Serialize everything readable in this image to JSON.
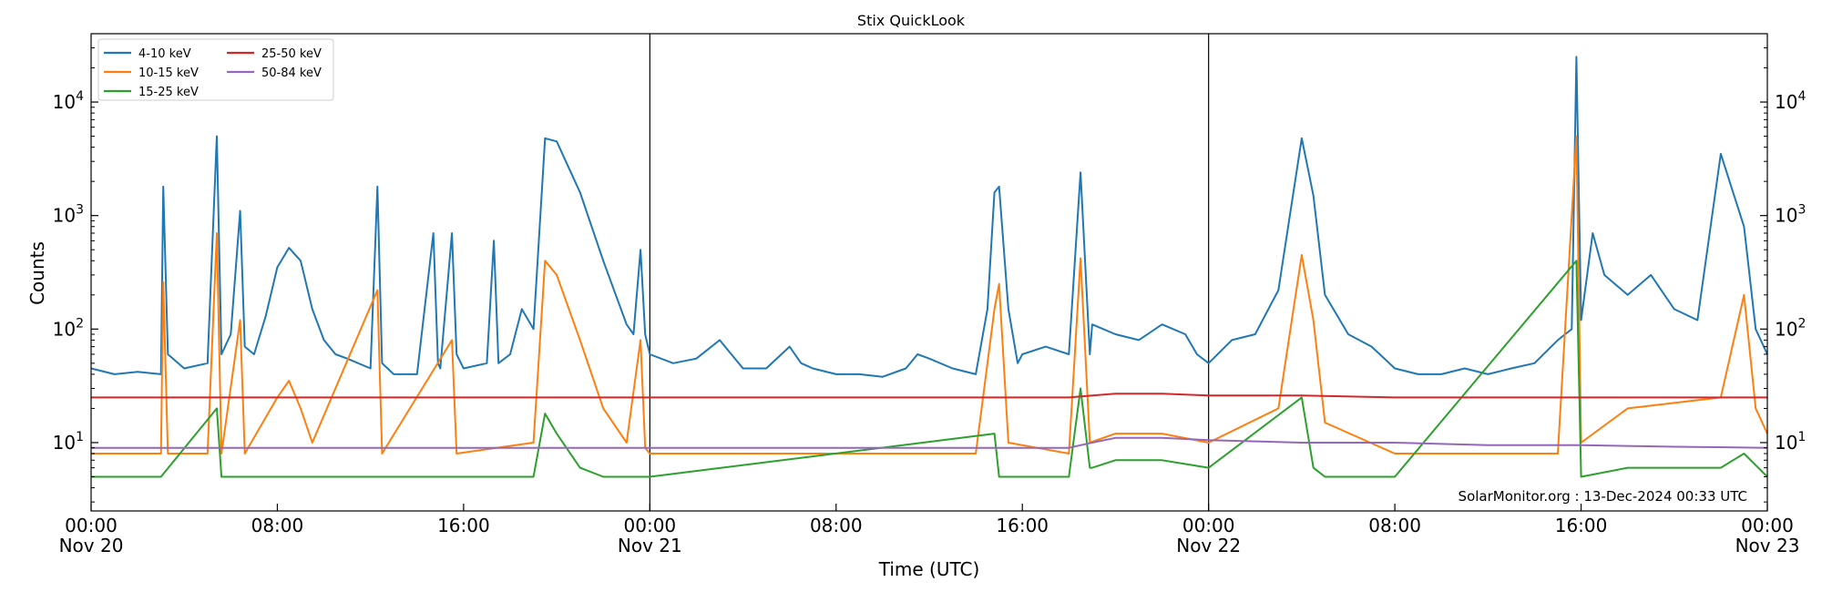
{
  "chart_data": {
    "type": "line",
    "title": "Stix QuickLook",
    "xlabel": "Time (UTC)",
    "ylabel": "Counts",
    "yscale": "log",
    "ylim": [
      2.5,
      40000
    ],
    "xlim_hours": [
      0,
      72
    ],
    "grid": false,
    "legend_position": "top-left",
    "footer": "SolarMonitor.org : 13-Dec-2024 00:33 UTC",
    "x_ticks": [
      {
        "hour": 0,
        "time": "00:00",
        "date": "Nov 20"
      },
      {
        "hour": 8,
        "time": "08:00",
        "date": ""
      },
      {
        "hour": 16,
        "time": "16:00",
        "date": ""
      },
      {
        "hour": 24,
        "time": "00:00",
        "date": "Nov 21"
      },
      {
        "hour": 32,
        "time": "08:00",
        "date": ""
      },
      {
        "hour": 40,
        "time": "16:00",
        "date": ""
      },
      {
        "hour": 48,
        "time": "00:00",
        "date": "Nov 22"
      },
      {
        "hour": 56,
        "time": "08:00",
        "date": ""
      },
      {
        "hour": 64,
        "time": "16:00",
        "date": ""
      },
      {
        "hour": 72,
        "time": "00:00",
        "date": "Nov 23"
      }
    ],
    "y_ticks": [
      {
        "value": 10,
        "exp": "1"
      },
      {
        "value": 100,
        "exp": "2"
      },
      {
        "value": 1000,
        "exp": "3"
      },
      {
        "value": 10000,
        "exp": "4"
      }
    ],
    "day_boundaries": [
      24,
      48
    ],
    "series": [
      {
        "name": "4-10 keV",
        "color": "#1f77b4",
        "points": [
          [
            0,
            45
          ],
          [
            1,
            40
          ],
          [
            2,
            42
          ],
          [
            3,
            40
          ],
          [
            3.1,
            1800
          ],
          [
            3.3,
            60
          ],
          [
            4,
            45
          ],
          [
            5,
            50
          ],
          [
            5.4,
            5000
          ],
          [
            5.6,
            60
          ],
          [
            6,
            90
          ],
          [
            6.4,
            1100
          ],
          [
            6.6,
            70
          ],
          [
            7,
            60
          ],
          [
            7.5,
            130
          ],
          [
            8,
            350
          ],
          [
            8.5,
            520
          ],
          [
            9,
            400
          ],
          [
            9.5,
            150
          ],
          [
            10,
            80
          ],
          [
            10.5,
            60
          ],
          [
            11,
            55
          ],
          [
            12,
            45
          ],
          [
            12.3,
            1800
          ],
          [
            12.5,
            50
          ],
          [
            13,
            40
          ],
          [
            14,
            40
          ],
          [
            14.7,
            700
          ],
          [
            14.9,
            50
          ],
          [
            15,
            45
          ],
          [
            15.5,
            700
          ],
          [
            15.7,
            60
          ],
          [
            16,
            45
          ],
          [
            17,
            50
          ],
          [
            17.3,
            600
          ],
          [
            17.5,
            50
          ],
          [
            18,
            60
          ],
          [
            18.5,
            150
          ],
          [
            19,
            100
          ],
          [
            19.5,
            4800
          ],
          [
            20,
            4500
          ],
          [
            21,
            1600
          ],
          [
            22,
            400
          ],
          [
            23,
            110
          ],
          [
            23.3,
            90
          ],
          [
            23.6,
            500
          ],
          [
            23.8,
            90
          ],
          [
            24,
            60
          ],
          [
            25,
            50
          ],
          [
            26,
            55
          ],
          [
            27,
            80
          ],
          [
            27.5,
            60
          ],
          [
            28,
            45
          ],
          [
            29,
            45
          ],
          [
            30,
            70
          ],
          [
            30.5,
            50
          ],
          [
            31,
            45
          ],
          [
            32,
            40
          ],
          [
            33,
            40
          ],
          [
            34,
            38
          ],
          [
            35,
            45
          ],
          [
            35.5,
            60
          ],
          [
            36,
            55
          ],
          [
            37,
            45
          ],
          [
            38,
            40
          ],
          [
            38.5,
            150
          ],
          [
            38.8,
            1600
          ],
          [
            39,
            1800
          ],
          [
            39.4,
            150
          ],
          [
            39.8,
            50
          ],
          [
            40,
            60
          ],
          [
            41,
            70
          ],
          [
            42,
            60
          ],
          [
            42,
            60
          ],
          [
            42.5,
            2400
          ],
          [
            42.9,
            60
          ],
          [
            43,
            110
          ],
          [
            44,
            90
          ],
          [
            45,
            80
          ],
          [
            46,
            110
          ],
          [
            47,
            90
          ],
          [
            47.5,
            60
          ],
          [
            48,
            50
          ],
          [
            49,
            80
          ],
          [
            50,
            90
          ],
          [
            51,
            220
          ],
          [
            52,
            4800
          ],
          [
            52.5,
            1500
          ],
          [
            53,
            200
          ],
          [
            54,
            90
          ],
          [
            55,
            70
          ],
          [
            56,
            45
          ],
          [
            57,
            40
          ],
          [
            58,
            40
          ],
          [
            59,
            45
          ],
          [
            60,
            40
          ],
          [
            61,
            45
          ],
          [
            62,
            50
          ],
          [
            63,
            80
          ],
          [
            63.6,
            100
          ],
          [
            63.8,
            25000
          ],
          [
            64,
            120
          ],
          [
            64.5,
            700
          ],
          [
            65,
            300
          ],
          [
            66,
            200
          ],
          [
            67,
            300
          ],
          [
            68,
            150
          ],
          [
            69,
            120
          ],
          [
            70,
            3500
          ],
          [
            71,
            800
          ],
          [
            71.5,
            100
          ],
          [
            72,
            60
          ]
        ]
      },
      {
        "name": "10-15 keV",
        "color": "#ff7f0e",
        "points": [
          [
            0,
            8
          ],
          [
            1,
            8
          ],
          [
            3,
            8
          ],
          [
            3.1,
            260
          ],
          [
            3.3,
            8
          ],
          [
            5,
            8
          ],
          [
            5.4,
            700
          ],
          [
            5.6,
            8
          ],
          [
            6.4,
            120
          ],
          [
            6.6,
            8
          ],
          [
            8,
            25
          ],
          [
            8.5,
            35
          ],
          [
            9,
            20
          ],
          [
            9.5,
            10
          ],
          [
            12.3,
            220
          ],
          [
            12.5,
            8
          ],
          [
            15.5,
            80
          ],
          [
            15.7,
            8
          ],
          [
            19,
            10
          ],
          [
            19.5,
            400
          ],
          [
            20,
            300
          ],
          [
            21,
            80
          ],
          [
            22,
            20
          ],
          [
            23,
            10
          ],
          [
            23.6,
            80
          ],
          [
            23.8,
            9
          ],
          [
            24,
            8
          ],
          [
            30,
            8
          ],
          [
            38,
            8
          ],
          [
            38.8,
            150
          ],
          [
            39,
            250
          ],
          [
            39.4,
            10
          ],
          [
            42,
            8
          ],
          [
            42.5,
            420
          ],
          [
            42.9,
            10
          ],
          [
            44,
            12
          ],
          [
            46,
            12
          ],
          [
            48,
            10
          ],
          [
            51,
            20
          ],
          [
            52,
            450
          ],
          [
            52.5,
            120
          ],
          [
            53,
            15
          ],
          [
            56,
            8
          ],
          [
            63,
            8
          ],
          [
            63.8,
            5000
          ],
          [
            64,
            10
          ],
          [
            66,
            20
          ],
          [
            70,
            25
          ],
          [
            71,
            200
          ],
          [
            71.5,
            20
          ],
          [
            72,
            12
          ]
        ]
      },
      {
        "name": "15-25 keV",
        "color": "#2ca02c",
        "points": [
          [
            0,
            5
          ],
          [
            3,
            5
          ],
          [
            5.4,
            20
          ],
          [
            5.6,
            5
          ],
          [
            12,
            5
          ],
          [
            19,
            5
          ],
          [
            19.5,
            18
          ],
          [
            20,
            12
          ],
          [
            21,
            6
          ],
          [
            22,
            5
          ],
          [
            24,
            5
          ],
          [
            38.8,
            12
          ],
          [
            39,
            5
          ],
          [
            42,
            5
          ],
          [
            42.5,
            30
          ],
          [
            42.9,
            6
          ],
          [
            43,
            6
          ],
          [
            44,
            7
          ],
          [
            46,
            7
          ],
          [
            48,
            6
          ],
          [
            52,
            25
          ],
          [
            52.5,
            6
          ],
          [
            53,
            5
          ],
          [
            56,
            5
          ],
          [
            63.8,
            400
          ],
          [
            64,
            5
          ],
          [
            66,
            6
          ],
          [
            70,
            6
          ],
          [
            71,
            8
          ],
          [
            72,
            5
          ]
        ]
      },
      {
        "name": "25-50 keV",
        "color": "#d62728",
        "points": [
          [
            0,
            25
          ],
          [
            10,
            25
          ],
          [
            20,
            25
          ],
          [
            30,
            25
          ],
          [
            40,
            25
          ],
          [
            42,
            25
          ],
          [
            43,
            26
          ],
          [
            44,
            27
          ],
          [
            46,
            27
          ],
          [
            48,
            26
          ],
          [
            52,
            26
          ],
          [
            56,
            25
          ],
          [
            60,
            25
          ],
          [
            64,
            25
          ],
          [
            68,
            25
          ],
          [
            72,
            25
          ]
        ]
      },
      {
        "name": "50-84 keV",
        "color": "#9467bd",
        "points": [
          [
            0,
            9
          ],
          [
            10,
            9
          ],
          [
            20,
            9
          ],
          [
            30,
            9
          ],
          [
            40,
            9
          ],
          [
            42,
            9
          ],
          [
            43,
            10
          ],
          [
            44,
            11
          ],
          [
            46,
            11
          ],
          [
            48,
            10.5
          ],
          [
            52,
            10
          ],
          [
            56,
            10
          ],
          [
            60,
            9.5
          ],
          [
            64,
            9.5
          ],
          [
            68,
            9.2
          ],
          [
            72,
            9
          ]
        ]
      }
    ]
  }
}
